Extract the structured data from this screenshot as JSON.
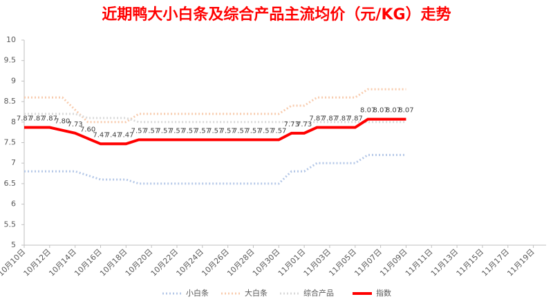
{
  "chart_data": {
    "type": "line",
    "title": "近期鸭大小白条及综合产品主流均价（元/KG）走势",
    "categories": [
      "10月10日",
      null,
      "10月12日",
      null,
      "10月14日",
      null,
      "10月16日",
      null,
      "10月18日",
      null,
      "10月20日",
      null,
      "10月22日",
      null,
      "10月24日",
      null,
      "10月26日",
      null,
      "10月28日",
      null,
      "10月30日",
      null,
      "11月01日",
      null,
      "11月03日",
      null,
      "11月05日",
      null,
      "11月07日",
      null,
      "11月09日",
      null,
      "11月11日",
      null,
      "11月13日",
      null,
      "11月15日",
      null,
      "11月17日",
      null,
      "11月19日",
      null
    ],
    "series": [
      {
        "name": "小白条",
        "color": "#b4c7e7",
        "values": [
          6.8,
          6.8,
          6.8,
          6.8,
          6.8,
          6.7,
          6.6,
          6.6,
          6.6,
          6.5,
          6.5,
          6.5,
          6.5,
          6.5,
          6.5,
          6.5,
          6.5,
          6.5,
          6.5,
          6.5,
          6.5,
          6.8,
          6.8,
          7.0,
          7.0,
          7.0,
          7.0,
          7.2,
          7.2,
          7.2,
          7.2,
          null,
          null,
          null,
          null,
          null,
          null,
          null,
          null,
          null,
          null,
          null
        ]
      },
      {
        "name": "大白条",
        "color": "#f8cbad",
        "values": [
          8.6,
          8.6,
          8.6,
          8.6,
          8.3,
          8.0,
          8.0,
          8.0,
          8.0,
          8.2,
          8.2,
          8.2,
          8.2,
          8.2,
          8.2,
          8.2,
          8.2,
          8.2,
          8.2,
          8.2,
          8.2,
          8.4,
          8.4,
          8.6,
          8.6,
          8.6,
          8.6,
          8.8,
          8.8,
          8.8,
          8.8,
          null,
          null,
          null,
          null,
          null,
          null,
          null,
          null,
          null,
          null,
          null
        ]
      },
      {
        "name": "综合产品",
        "color": "#d9d9d9",
        "values": [
          8.2,
          8.2,
          8.2,
          8.2,
          8.2,
          8.1,
          8.1,
          8.1,
          8.1,
          8.0,
          8.0,
          8.0,
          8.0,
          8.0,
          8.0,
          8.0,
          8.0,
          8.0,
          8.0,
          8.0,
          8.0,
          8.0,
          8.0,
          8.0,
          8.0,
          8.0,
          8.0,
          8.0,
          8.0,
          8.0,
          8.0,
          null,
          null,
          null,
          null,
          null,
          null,
          null,
          null,
          null,
          null,
          null
        ]
      },
      {
        "name": "指数",
        "color": "#ff0000",
        "values": [
          7.87,
          7.87,
          7.87,
          7.8,
          7.73,
          7.6,
          7.47,
          7.47,
          7.47,
          7.57,
          7.57,
          7.57,
          7.57,
          7.57,
          7.57,
          7.57,
          7.57,
          7.57,
          7.57,
          7.57,
          7.57,
          7.73,
          7.73,
          7.87,
          7.87,
          7.87,
          7.87,
          8.07,
          8.07,
          8.07,
          8.07,
          null,
          null,
          null,
          null,
          null,
          null,
          null,
          null,
          null,
          null,
          null
        ],
        "value_labels": [
          "7.87",
          "7.87",
          "7.87",
          "7.80",
          "7.73",
          "7.60",
          "7.47",
          "7.47",
          "7.47",
          "7.57",
          "7.57",
          "7.57",
          "7.57",
          "7.57",
          "7.57",
          "7.57",
          "7.57",
          "7.57",
          "7.57",
          "7.57",
          "7.57",
          "7.73",
          "7.73",
          "7.87",
          "7.87",
          "7.87",
          "7.87",
          "8.07",
          "8.07",
          "8.07",
          "8.07",
          null,
          null,
          null,
          null,
          null,
          null,
          null,
          null,
          null,
          null,
          null
        ]
      }
    ],
    "ylim": [
      5,
      10
    ],
    "yticks": [
      5,
      5.5,
      6,
      6.5,
      7,
      7.5,
      8,
      8.5,
      9,
      9.5,
      10
    ],
    "legend": "bottom"
  }
}
